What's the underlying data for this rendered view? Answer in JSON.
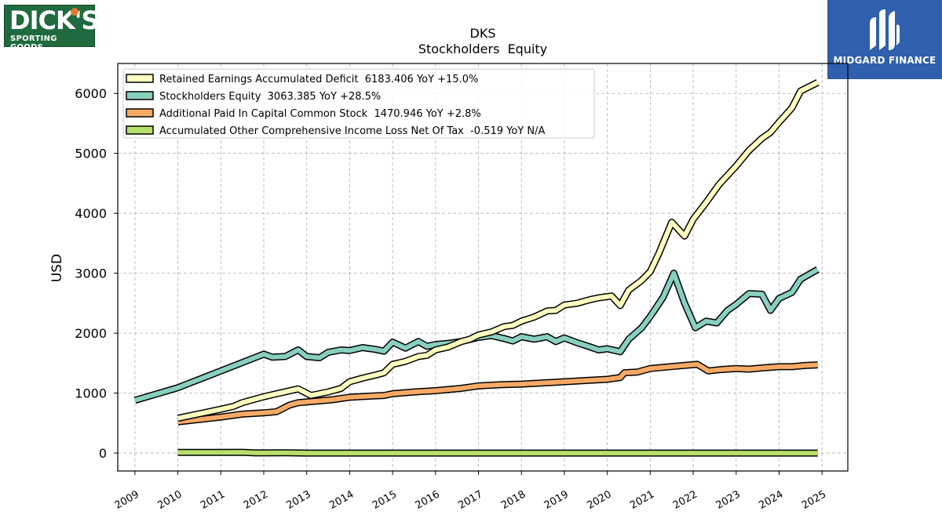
{
  "logos": {
    "left": {
      "line1": "DICK'S",
      "line2": "SPORTING GOODS."
    },
    "right": {
      "caption": "MIDGARD FINANCE"
    }
  },
  "colors": {
    "retained": "#ffffc0",
    "equity": "#88cfc0",
    "apic": "#f7aa66",
    "aoci": "#b6de6a",
    "grid": "#b0b0b0"
  },
  "chart_data": {
    "type": "line",
    "title": "DKS",
    "subtitle": "Stockholders  Equity",
    "ylabel": "USD",
    "xlabel": "",
    "xlim": [
      2008.6,
      2025.6
    ],
    "ylim": [
      -300,
      6500
    ],
    "x_ticks": [
      2009,
      2010,
      2011,
      2012,
      2013,
      2014,
      2015,
      2016,
      2017,
      2018,
      2019,
      2020,
      2021,
      2022,
      2023,
      2024,
      2025
    ],
    "y_ticks": [
      0,
      1000,
      2000,
      3000,
      4000,
      5000,
      6000
    ],
    "grid": true,
    "legend_position": "top-left",
    "series": [
      {
        "name": "Retained Earnings Accumulated Deficit  6183.406 YoY +15.0%",
        "color_key": "retained",
        "points": [
          [
            2010.0,
            580
          ],
          [
            2011.0,
            730
          ],
          [
            2011.3,
            780
          ],
          [
            2011.5,
            840
          ],
          [
            2012.0,
            940
          ],
          [
            2012.3,
            990
          ],
          [
            2012.8,
            1070
          ],
          [
            2013.1,
            960
          ],
          [
            2013.5,
            1020
          ],
          [
            2013.8,
            1080
          ],
          [
            2014.0,
            1190
          ],
          [
            2014.3,
            1250
          ],
          [
            2014.6,
            1300
          ],
          [
            2014.8,
            1340
          ],
          [
            2015.0,
            1480
          ],
          [
            2015.3,
            1530
          ],
          [
            2015.6,
            1610
          ],
          [
            2015.8,
            1630
          ],
          [
            2016.0,
            1720
          ],
          [
            2016.3,
            1770
          ],
          [
            2016.6,
            1860
          ],
          [
            2016.8,
            1900
          ],
          [
            2017.0,
            1970
          ],
          [
            2017.3,
            2020
          ],
          [
            2017.6,
            2110
          ],
          [
            2017.8,
            2130
          ],
          [
            2018.0,
            2200
          ],
          [
            2018.3,
            2270
          ],
          [
            2018.6,
            2370
          ],
          [
            2018.8,
            2380
          ],
          [
            2019.0,
            2470
          ],
          [
            2019.3,
            2500
          ],
          [
            2019.6,
            2560
          ],
          [
            2019.8,
            2590
          ],
          [
            2020.1,
            2620
          ],
          [
            2020.3,
            2460
          ],
          [
            2020.5,
            2720
          ],
          [
            2020.8,
            2880
          ],
          [
            2021.0,
            3030
          ],
          [
            2021.2,
            3330
          ],
          [
            2021.5,
            3850
          ],
          [
            2021.8,
            3620
          ],
          [
            2022.0,
            3900
          ],
          [
            2022.3,
            4180
          ],
          [
            2022.6,
            4480
          ],
          [
            2023.0,
            4790
          ],
          [
            2023.3,
            5050
          ],
          [
            2023.6,
            5250
          ],
          [
            2023.8,
            5350
          ],
          [
            2024.0,
            5520
          ],
          [
            2024.3,
            5760
          ],
          [
            2024.5,
            6040
          ],
          [
            2024.9,
            6183.406
          ]
        ]
      },
      {
        "name": "Stockholders Equity  3063.385 YoY +28.5%",
        "color_key": "equity",
        "points": [
          [
            2009.0,
            880
          ],
          [
            2010.0,
            1090
          ],
          [
            2011.0,
            1370
          ],
          [
            2012.0,
            1650
          ],
          [
            2012.2,
            1600
          ],
          [
            2012.5,
            1610
          ],
          [
            2012.8,
            1720
          ],
          [
            2013.0,
            1610
          ],
          [
            2013.3,
            1590
          ],
          [
            2013.5,
            1680
          ],
          [
            2013.8,
            1720
          ],
          [
            2014.0,
            1710
          ],
          [
            2014.3,
            1760
          ],
          [
            2014.6,
            1730
          ],
          [
            2014.8,
            1700
          ],
          [
            2015.0,
            1850
          ],
          [
            2015.3,
            1750
          ],
          [
            2015.6,
            1860
          ],
          [
            2015.8,
            1780
          ],
          [
            2016.0,
            1810
          ],
          [
            2016.3,
            1830
          ],
          [
            2016.6,
            1860
          ],
          [
            2017.0,
            1930
          ],
          [
            2017.3,
            1960
          ],
          [
            2017.6,
            1910
          ],
          [
            2017.8,
            1870
          ],
          [
            2018.0,
            1940
          ],
          [
            2018.3,
            1900
          ],
          [
            2018.6,
            1940
          ],
          [
            2018.8,
            1860
          ],
          [
            2019.0,
            1920
          ],
          [
            2019.3,
            1840
          ],
          [
            2019.6,
            1770
          ],
          [
            2019.8,
            1720
          ],
          [
            2020.0,
            1740
          ],
          [
            2020.3,
            1690
          ],
          [
            2020.5,
            1900
          ],
          [
            2020.8,
            2090
          ],
          [
            2021.0,
            2280
          ],
          [
            2021.3,
            2600
          ],
          [
            2021.55,
            3000
          ],
          [
            2021.8,
            2500
          ],
          [
            2022.05,
            2090
          ],
          [
            2022.3,
            2200
          ],
          [
            2022.55,
            2170
          ],
          [
            2022.8,
            2380
          ],
          [
            2023.0,
            2480
          ],
          [
            2023.3,
            2660
          ],
          [
            2023.6,
            2650
          ],
          [
            2023.8,
            2380
          ],
          [
            2024.0,
            2580
          ],
          [
            2024.3,
            2680
          ],
          [
            2024.5,
            2900
          ],
          [
            2024.9,
            3063.385
          ]
        ]
      },
      {
        "name": "Additional Paid In Capital Common Stock  1470.946 YoY +2.8%",
        "color_key": "apic",
        "points": [
          [
            2010.0,
            520
          ],
          [
            2011.0,
            600
          ],
          [
            2011.5,
            650
          ],
          [
            2012.0,
            670
          ],
          [
            2012.3,
            690
          ],
          [
            2012.6,
            800
          ],
          [
            2012.8,
            840
          ],
          [
            2013.3,
            870
          ],
          [
            2013.6,
            890
          ],
          [
            2014.0,
            930
          ],
          [
            2014.5,
            950
          ],
          [
            2014.8,
            960
          ],
          [
            2015.0,
            990
          ],
          [
            2015.5,
            1020
          ],
          [
            2016.0,
            1040
          ],
          [
            2016.3,
            1060
          ],
          [
            2016.6,
            1080
          ],
          [
            2017.0,
            1120
          ],
          [
            2017.5,
            1140
          ],
          [
            2018.0,
            1150
          ],
          [
            2018.5,
            1170
          ],
          [
            2019.0,
            1190
          ],
          [
            2019.5,
            1210
          ],
          [
            2020.0,
            1230
          ],
          [
            2020.3,
            1260
          ],
          [
            2020.4,
            1340
          ],
          [
            2020.7,
            1350
          ],
          [
            2021.0,
            1410
          ],
          [
            2021.3,
            1430
          ],
          [
            2021.6,
            1450
          ],
          [
            2022.1,
            1480
          ],
          [
            2022.35,
            1370
          ],
          [
            2022.6,
            1390
          ],
          [
            2023.0,
            1410
          ],
          [
            2023.3,
            1400
          ],
          [
            2023.6,
            1420
          ],
          [
            2024.0,
            1440
          ],
          [
            2024.3,
            1440
          ],
          [
            2024.6,
            1460
          ],
          [
            2024.9,
            1470.946
          ]
        ]
      },
      {
        "name": "Accumulated Other Comprehensive Income Loss Net Of Tax  -0.519 YoY N/A",
        "color_key": "aoci",
        "points": [
          [
            2010.0,
            10
          ],
          [
            2011.0,
            10
          ],
          [
            2011.5,
            12
          ],
          [
            2011.8,
            2
          ],
          [
            2012.0,
            2
          ],
          [
            2012.5,
            5
          ],
          [
            2013.0,
            0
          ],
          [
            2014.0,
            0
          ],
          [
            2015.0,
            0
          ],
          [
            2016.0,
            0
          ],
          [
            2017.0,
            0
          ],
          [
            2018.0,
            0
          ],
          [
            2019.0,
            0
          ],
          [
            2020.0,
            0
          ],
          [
            2021.0,
            0
          ],
          [
            2022.0,
            0
          ],
          [
            2023.0,
            0
          ],
          [
            2024.0,
            0
          ],
          [
            2024.9,
            -0.519
          ]
        ]
      }
    ]
  }
}
